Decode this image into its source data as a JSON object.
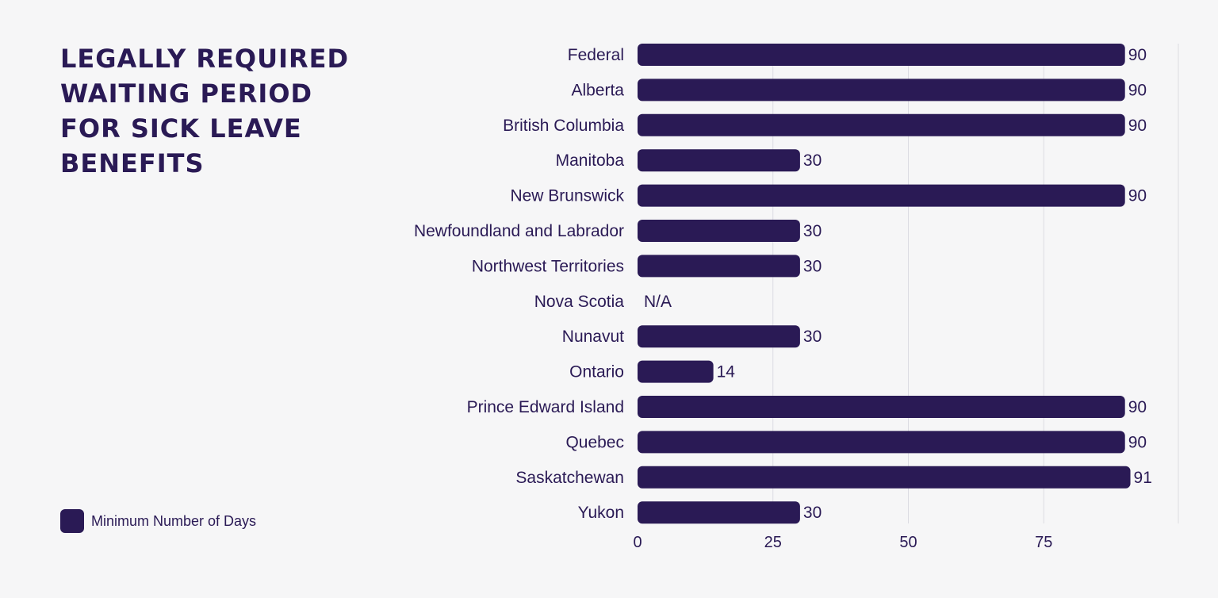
{
  "title": "LEGALLY REQUIRED WAITING PERIOD FOR SICK LEAVE BENEFITS",
  "legend": {
    "label": "Minimum Number of Days",
    "color": "#2a1a55"
  },
  "chart_data": {
    "type": "bar",
    "orientation": "horizontal",
    "title": "LEGALLY REQUIRED WAITING PERIOD FOR SICK LEAVE BENEFITS",
    "categories": [
      "Federal",
      "Alberta",
      "British Columbia",
      "Manitoba",
      "New Brunswick",
      "Newfoundland and Labrador",
      "Northwest Territories",
      "Nova Scotia",
      "Nunavut",
      "Ontario",
      "Prince Edward Island",
      "Quebec",
      "Saskatchewan",
      "Yukon"
    ],
    "series": [
      {
        "name": "Minimum Number of Days",
        "values": [
          90,
          90,
          90,
          30,
          90,
          30,
          30,
          null,
          30,
          14,
          90,
          90,
          91,
          30
        ],
        "labels": [
          "90",
          "90",
          "90",
          "30",
          "90",
          "30",
          "30",
          "N/A",
          "30",
          "14",
          "90",
          "90",
          "91",
          "30"
        ]
      }
    ],
    "xlim": [
      0,
      100
    ],
    "xticks": [
      0,
      25,
      50,
      75
    ],
    "grid": true,
    "legend_position": "bottom-left",
    "bar_color": "#2a1a55",
    "grid_color": "#dcdce2"
  }
}
